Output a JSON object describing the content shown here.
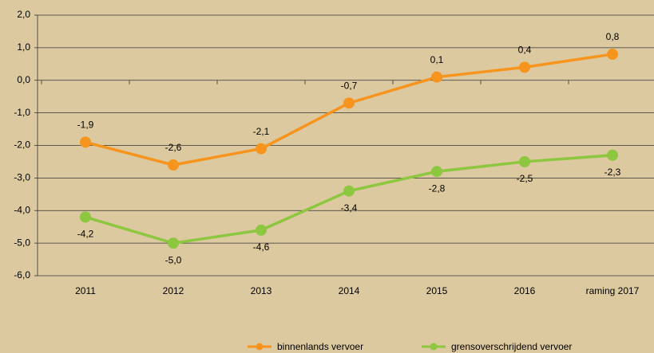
{
  "chart_data": {
    "type": "line",
    "categories": [
      "2011",
      "2012",
      "2013",
      "2014",
      "2015",
      "2016",
      "raming 2017"
    ],
    "series": [
      {
        "name": "binnenlands vervoer",
        "color": "#f7941d",
        "values": [
          -1.9,
          -2.6,
          -2.1,
          -0.7,
          0.1,
          0.4,
          0.8
        ],
        "value_labels": [
          "-1,9",
          "-2,6",
          "-2,1",
          "-0,7",
          "0,1",
          "0,4",
          "0,8"
        ]
      },
      {
        "name": "grensoverschrijdend vervoer",
        "color": "#8dc63f",
        "values": [
          -4.2,
          -5.0,
          -4.6,
          -3.4,
          -2.8,
          -2.5,
          -2.3
        ],
        "value_labels": [
          "-4,2",
          "-5,0",
          "-4,6",
          "-3,4",
          "-2,8",
          "-2,5",
          "-2,3"
        ]
      }
    ],
    "ylim": [
      -6,
      2
    ],
    "yticks": [
      {
        "value": -6,
        "label": "-6,0"
      },
      {
        "value": -5,
        "label": "-5,0"
      },
      {
        "value": -4,
        "label": "-4,0"
      },
      {
        "value": -3,
        "label": "-3,0"
      },
      {
        "value": -2,
        "label": "-2,0"
      },
      {
        "value": -1,
        "label": "-1,0"
      },
      {
        "value": 0,
        "label": "0,0"
      },
      {
        "value": 1,
        "label": "1,0"
      },
      {
        "value": 2,
        "label": "2,0"
      }
    ],
    "grid": true,
    "legend": "bottom"
  }
}
